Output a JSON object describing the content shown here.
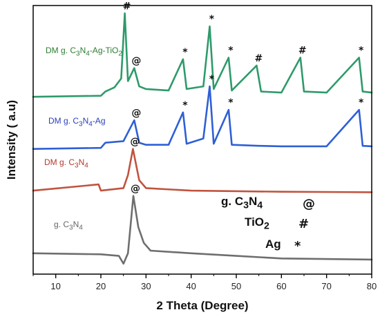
{
  "chart_data": {
    "type": "line",
    "xlabel": "2 Theta (Degree)",
    "ylabel": "Intensity ( a.u)",
    "xlim": [
      5,
      80
    ],
    "x_ticks": [
      "10",
      "20",
      "30",
      "40",
      "50",
      "60",
      "70",
      "80"
    ],
    "y_ticks_labeled": false,
    "series": [
      {
        "name": "DM g. C3N4-Ag-TiO2",
        "label_html": "DM g. C<sub>3</sub>N<sub>4</sub>-Ag-TiO<sub>2</sub>",
        "color": "#2e9a6a",
        "label_color": "#2e7d32",
        "offset": 3.0,
        "baseline": 0.0,
        "points": [
          [
            5,
            0.0
          ],
          [
            20,
            0.02
          ],
          [
            21,
            0.1
          ],
          [
            23,
            0.18
          ],
          [
            24.5,
            0.35
          ],
          [
            25.3,
            1.6
          ],
          [
            26,
            0.3
          ],
          [
            27.4,
            0.55
          ],
          [
            28.5,
            0.2
          ],
          [
            30,
            0.15
          ],
          [
            35,
            0.12
          ],
          [
            38.2,
            0.72
          ],
          [
            39,
            0.15
          ],
          [
            42.7,
            0.2
          ],
          [
            44.1,
            1.35
          ],
          [
            45,
            0.15
          ],
          [
            48.3,
            0.75
          ],
          [
            49,
            0.12
          ],
          [
            54.5,
            0.6
          ],
          [
            55.5,
            0.1
          ],
          [
            60,
            0.08
          ],
          [
            64.2,
            0.75
          ],
          [
            65,
            0.1
          ],
          [
            70,
            0.08
          ],
          [
            77.2,
            0.75
          ],
          [
            78,
            0.1
          ],
          [
            80,
            0.08
          ]
        ],
        "markers": [
          {
            "x": 25.3,
            "symbol": "#"
          },
          {
            "x": 27.4,
            "symbol": "@"
          },
          {
            "x": 38.2,
            "symbol": "*"
          },
          {
            "x": 44.1,
            "symbol": "*"
          },
          {
            "x": 48.3,
            "symbol": "*"
          },
          {
            "x": 54.5,
            "symbol": "#"
          },
          {
            "x": 64.2,
            "symbol": "#"
          },
          {
            "x": 77.2,
            "symbol": "*"
          }
        ]
      },
      {
        "name": "DM g. C3N4-Ag",
        "label_html": "DM g. C<sub>3</sub>N<sub>4</sub>-Ag",
        "color": "#2e5fd6",
        "label_color": "#2a3fb8",
        "offset": 2.0,
        "baseline": 0.0,
        "points": [
          [
            5,
            0.0
          ],
          [
            20,
            0.02
          ],
          [
            21,
            0.12
          ],
          [
            25,
            0.15
          ],
          [
            27.4,
            0.55
          ],
          [
            28.5,
            0.12
          ],
          [
            30,
            0.08
          ],
          [
            35,
            0.08
          ],
          [
            38.2,
            0.7
          ],
          [
            39,
            0.1
          ],
          [
            42.7,
            0.2
          ],
          [
            44.1,
            1.2
          ],
          [
            45,
            0.1
          ],
          [
            48.3,
            0.75
          ],
          [
            49,
            0.08
          ],
          [
            55,
            0.06
          ],
          [
            60,
            0.05
          ],
          [
            70,
            0.05
          ],
          [
            77.2,
            0.75
          ],
          [
            78,
            0.06
          ],
          [
            80,
            0.05
          ]
        ],
        "markers": [
          {
            "x": 27.4,
            "symbol": "@"
          },
          {
            "x": 38.2,
            "symbol": "*"
          },
          {
            "x": 44.1,
            "symbol": "*"
          },
          {
            "x": 48.3,
            "symbol": "*"
          },
          {
            "x": 77.2,
            "symbol": "*"
          }
        ]
      },
      {
        "name": "DM g. C3N4",
        "label_html": "DM g. C<sub>3</sub>N<sub>4</sub>",
        "color": "#c0533e",
        "label_color": "#b03a2e",
        "offset": 1.2,
        "baseline": 0.0,
        "points": [
          [
            5,
            0.0
          ],
          [
            19.5,
            0.12
          ],
          [
            20,
            0.0
          ],
          [
            25,
            0.05
          ],
          [
            26,
            0.3
          ],
          [
            27.1,
            0.8
          ],
          [
            28.5,
            0.2
          ],
          [
            30,
            0.05
          ],
          [
            40,
            0.0
          ],
          [
            60,
            -0.02
          ],
          [
            80,
            -0.03
          ]
        ],
        "markers": [
          {
            "x": 27.1,
            "symbol": "@"
          }
        ]
      },
      {
        "name": "g. C3N4",
        "label_html": "g. C<sub>3</sub>N<sub>4</sub>",
        "color": "#6e6e6e",
        "label_color": "#666666",
        "offset": 0.0,
        "baseline": 0.0,
        "points": [
          [
            5,
            0.0
          ],
          [
            20,
            -0.02
          ],
          [
            24,
            -0.05
          ],
          [
            25,
            -0.2
          ],
          [
            26,
            0.0
          ],
          [
            27.2,
            1.1
          ],
          [
            28.3,
            0.5
          ],
          [
            29.5,
            0.2
          ],
          [
            31,
            0.05
          ],
          [
            40,
            0.0
          ],
          [
            50,
            -0.05
          ],
          [
            60,
            -0.1
          ],
          [
            80,
            -0.12
          ]
        ],
        "markers": [
          {
            "x": 27.2,
            "symbol": "@"
          }
        ]
      }
    ],
    "phase_legend": [
      {
        "label_html": "g. C<sub>3</sub>N<sub>4</sub>",
        "symbol": "@"
      },
      {
        "label_html": "TiO<sub>2</sub>",
        "symbol": "#"
      },
      {
        "label_html": "Ag",
        "symbol": "*"
      }
    ]
  }
}
